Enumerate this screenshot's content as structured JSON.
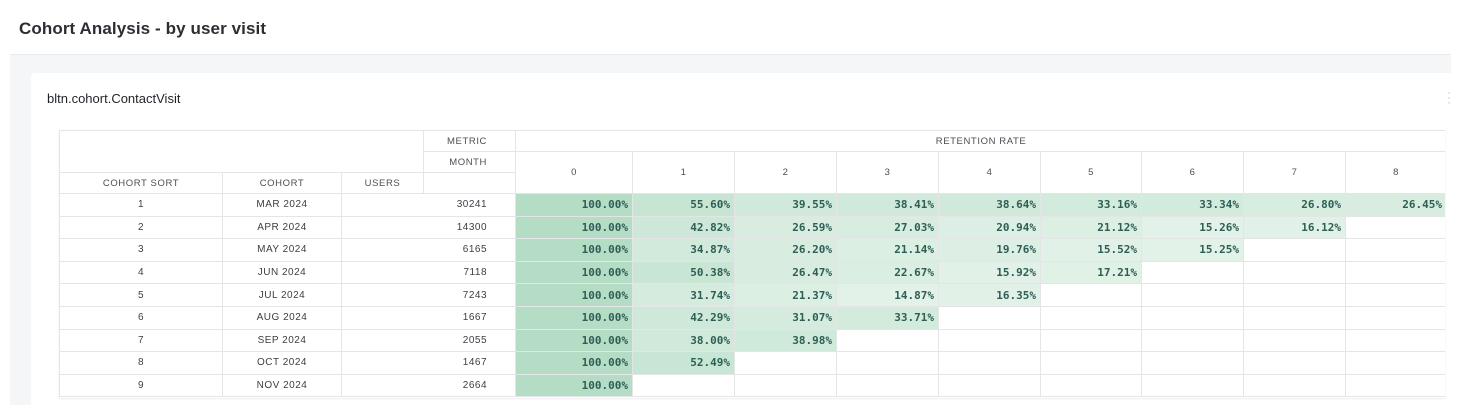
{
  "page": {
    "title": "Cohort Analysis - by user visit"
  },
  "card": {
    "title": "bltn.cohort.ContactVisit"
  },
  "table": {
    "metric_label": "METRIC",
    "metric_value": "RETENTION RATE",
    "month_label": "MONTH",
    "headers": {
      "cohort_sort": "COHORT SORT",
      "cohort": "COHORT",
      "users": "USERS"
    },
    "months": [
      "0",
      "1",
      "2",
      "3",
      "4",
      "5",
      "6",
      "7",
      "8"
    ],
    "rows": [
      {
        "sort": "1",
        "cohort": "MAR 2024",
        "users": "30241",
        "rates": [
          "100.00%",
          "55.60%",
          "39.55%",
          "38.41%",
          "38.64%",
          "33.16%",
          "33.34%",
          "26.80%",
          "26.45%"
        ]
      },
      {
        "sort": "2",
        "cohort": "APR 2024",
        "users": "14300",
        "rates": [
          "100.00%",
          "42.82%",
          "26.59%",
          "27.03%",
          "20.94%",
          "21.12%",
          "15.26%",
          "16.12%"
        ]
      },
      {
        "sort": "3",
        "cohort": "MAY 2024",
        "users": "6165",
        "rates": [
          "100.00%",
          "34.87%",
          "26.20%",
          "21.14%",
          "19.76%",
          "15.52%",
          "15.25%"
        ]
      },
      {
        "sort": "4",
        "cohort": "JUN 2024",
        "users": "7118",
        "rates": [
          "100.00%",
          "50.38%",
          "26.47%",
          "22.67%",
          "15.92%",
          "17.21%"
        ]
      },
      {
        "sort": "5",
        "cohort": "JUL 2024",
        "users": "7243",
        "rates": [
          "100.00%",
          "31.74%",
          "21.37%",
          "14.87%",
          "16.35%"
        ]
      },
      {
        "sort": "6",
        "cohort": "AUG 2024",
        "users": "1667",
        "rates": [
          "100.00%",
          "42.29%",
          "31.07%",
          "33.71%"
        ]
      },
      {
        "sort": "7",
        "cohort": "SEP 2024",
        "users": "2055",
        "rates": [
          "100.00%",
          "38.00%",
          "38.98%"
        ]
      },
      {
        "sort": "8",
        "cohort": "OCT 2024",
        "users": "1467",
        "rates": [
          "100.00%",
          "52.49%"
        ]
      },
      {
        "sort": "9",
        "cohort": "NOV 2024",
        "users": "2664",
        "rates": [
          "100.00%"
        ]
      }
    ]
  },
  "colors": {
    "heat_max": "#b5ddc6",
    "heat_min": "#eef7f1",
    "rate_text": "#2e5e55"
  }
}
